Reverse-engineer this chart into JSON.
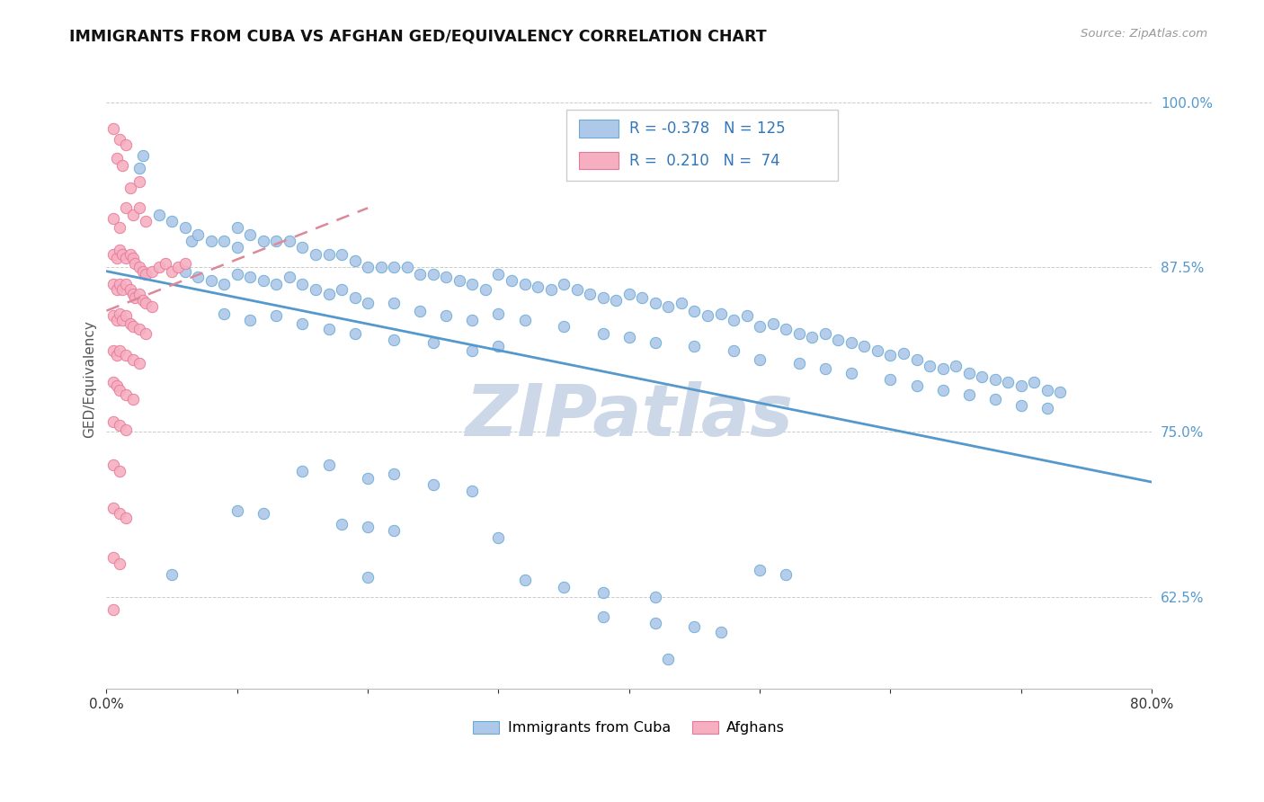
{
  "title": "IMMIGRANTS FROM CUBA VS AFGHAN GED/EQUIVALENCY CORRELATION CHART",
  "source": "Source: ZipAtlas.com",
  "ylabel": "GED/Equivalency",
  "ytick_values": [
    0.625,
    0.75,
    0.875,
    1.0
  ],
  "xlim": [
    0.0,
    0.8
  ],
  "ylim": [
    0.555,
    1.025
  ],
  "legend_blue_label": "Immigrants from Cuba",
  "legend_pink_label": "Afghans",
  "r_blue": "-0.378",
  "n_blue": "125",
  "r_pink": "0.210",
  "n_pink": "74",
  "blue_color": "#adc8e8",
  "pink_color": "#f5afc0",
  "blue_edge_color": "#6aaad4",
  "pink_edge_color": "#e87898",
  "blue_line_color": "#5599cc",
  "pink_line_color": "#dd8899",
  "watermark_color": "#ccd8e8",
  "blue_line_x": [
    0.0,
    0.8
  ],
  "blue_line_y": [
    0.872,
    0.712
  ],
  "pink_line_x": [
    0.0,
    0.2
  ],
  "pink_line_y": [
    0.842,
    0.92
  ],
  "blue_scatter": [
    [
      0.025,
      0.95
    ],
    [
      0.028,
      0.96
    ],
    [
      0.04,
      0.915
    ],
    [
      0.05,
      0.91
    ],
    [
      0.06,
      0.905
    ],
    [
      0.065,
      0.895
    ],
    [
      0.07,
      0.9
    ],
    [
      0.08,
      0.895
    ],
    [
      0.09,
      0.895
    ],
    [
      0.1,
      0.905
    ],
    [
      0.11,
      0.9
    ],
    [
      0.1,
      0.89
    ],
    [
      0.12,
      0.895
    ],
    [
      0.13,
      0.895
    ],
    [
      0.14,
      0.895
    ],
    [
      0.15,
      0.89
    ],
    [
      0.16,
      0.885
    ],
    [
      0.17,
      0.885
    ],
    [
      0.18,
      0.885
    ],
    [
      0.19,
      0.88
    ],
    [
      0.2,
      0.875
    ],
    [
      0.21,
      0.875
    ],
    [
      0.22,
      0.875
    ],
    [
      0.23,
      0.875
    ],
    [
      0.24,
      0.87
    ],
    [
      0.25,
      0.87
    ],
    [
      0.26,
      0.868
    ],
    [
      0.27,
      0.865
    ],
    [
      0.28,
      0.862
    ],
    [
      0.29,
      0.858
    ],
    [
      0.3,
      0.87
    ],
    [
      0.31,
      0.865
    ],
    [
      0.32,
      0.862
    ],
    [
      0.33,
      0.86
    ],
    [
      0.34,
      0.858
    ],
    [
      0.35,
      0.862
    ],
    [
      0.36,
      0.858
    ],
    [
      0.37,
      0.855
    ],
    [
      0.38,
      0.852
    ],
    [
      0.39,
      0.85
    ],
    [
      0.4,
      0.855
    ],
    [
      0.41,
      0.852
    ],
    [
      0.42,
      0.848
    ],
    [
      0.43,
      0.845
    ],
    [
      0.44,
      0.848
    ],
    [
      0.45,
      0.842
    ],
    [
      0.46,
      0.838
    ],
    [
      0.47,
      0.84
    ],
    [
      0.48,
      0.835
    ],
    [
      0.49,
      0.838
    ],
    [
      0.5,
      0.83
    ],
    [
      0.51,
      0.832
    ],
    [
      0.52,
      0.828
    ],
    [
      0.53,
      0.825
    ],
    [
      0.54,
      0.822
    ],
    [
      0.55,
      0.825
    ],
    [
      0.56,
      0.82
    ],
    [
      0.57,
      0.818
    ],
    [
      0.58,
      0.815
    ],
    [
      0.59,
      0.812
    ],
    [
      0.6,
      0.808
    ],
    [
      0.61,
      0.81
    ],
    [
      0.62,
      0.805
    ],
    [
      0.63,
      0.8
    ],
    [
      0.64,
      0.798
    ],
    [
      0.65,
      0.8
    ],
    [
      0.66,
      0.795
    ],
    [
      0.67,
      0.792
    ],
    [
      0.68,
      0.79
    ],
    [
      0.69,
      0.788
    ],
    [
      0.7,
      0.785
    ],
    [
      0.71,
      0.788
    ],
    [
      0.72,
      0.782
    ],
    [
      0.73,
      0.78
    ],
    [
      0.06,
      0.872
    ],
    [
      0.07,
      0.868
    ],
    [
      0.08,
      0.865
    ],
    [
      0.09,
      0.862
    ],
    [
      0.1,
      0.87
    ],
    [
      0.11,
      0.868
    ],
    [
      0.12,
      0.865
    ],
    [
      0.13,
      0.862
    ],
    [
      0.14,
      0.868
    ],
    [
      0.15,
      0.862
    ],
    [
      0.16,
      0.858
    ],
    [
      0.17,
      0.855
    ],
    [
      0.18,
      0.858
    ],
    [
      0.19,
      0.852
    ],
    [
      0.2,
      0.848
    ],
    [
      0.22,
      0.848
    ],
    [
      0.24,
      0.842
    ],
    [
      0.26,
      0.838
    ],
    [
      0.28,
      0.835
    ],
    [
      0.3,
      0.84
    ],
    [
      0.32,
      0.835
    ],
    [
      0.35,
      0.83
    ],
    [
      0.38,
      0.825
    ],
    [
      0.4,
      0.822
    ],
    [
      0.42,
      0.818
    ],
    [
      0.45,
      0.815
    ],
    [
      0.48,
      0.812
    ],
    [
      0.5,
      0.805
    ],
    [
      0.53,
      0.802
    ],
    [
      0.55,
      0.798
    ],
    [
      0.57,
      0.795
    ],
    [
      0.6,
      0.79
    ],
    [
      0.62,
      0.785
    ],
    [
      0.64,
      0.782
    ],
    [
      0.66,
      0.778
    ],
    [
      0.68,
      0.775
    ],
    [
      0.7,
      0.77
    ],
    [
      0.72,
      0.768
    ],
    [
      0.09,
      0.84
    ],
    [
      0.11,
      0.835
    ],
    [
      0.13,
      0.838
    ],
    [
      0.15,
      0.832
    ],
    [
      0.17,
      0.828
    ],
    [
      0.19,
      0.825
    ],
    [
      0.22,
      0.82
    ],
    [
      0.25,
      0.818
    ],
    [
      0.28,
      0.812
    ],
    [
      0.3,
      0.815
    ],
    [
      0.15,
      0.72
    ],
    [
      0.17,
      0.725
    ],
    [
      0.2,
      0.715
    ],
    [
      0.22,
      0.718
    ],
    [
      0.25,
      0.71
    ],
    [
      0.28,
      0.705
    ],
    [
      0.1,
      0.69
    ],
    [
      0.12,
      0.688
    ],
    [
      0.18,
      0.68
    ],
    [
      0.2,
      0.678
    ],
    [
      0.22,
      0.675
    ],
    [
      0.3,
      0.67
    ],
    [
      0.05,
      0.642
    ],
    [
      0.2,
      0.64
    ],
    [
      0.32,
      0.638
    ],
    [
      0.35,
      0.632
    ],
    [
      0.38,
      0.628
    ],
    [
      0.42,
      0.625
    ],
    [
      0.5,
      0.645
    ],
    [
      0.52,
      0.642
    ],
    [
      0.38,
      0.61
    ],
    [
      0.42,
      0.605
    ],
    [
      0.45,
      0.602
    ],
    [
      0.47,
      0.598
    ],
    [
      0.43,
      0.578
    ]
  ],
  "pink_scatter": [
    [
      0.005,
      0.98
    ],
    [
      0.01,
      0.972
    ],
    [
      0.015,
      0.968
    ],
    [
      0.008,
      0.958
    ],
    [
      0.012,
      0.952
    ],
    [
      0.018,
      0.935
    ],
    [
      0.025,
      0.94
    ],
    [
      0.005,
      0.912
    ],
    [
      0.01,
      0.905
    ],
    [
      0.015,
      0.92
    ],
    [
      0.02,
      0.915
    ],
    [
      0.025,
      0.92
    ],
    [
      0.03,
      0.91
    ],
    [
      0.005,
      0.885
    ],
    [
      0.008,
      0.882
    ],
    [
      0.01,
      0.888
    ],
    [
      0.012,
      0.885
    ],
    [
      0.015,
      0.882
    ],
    [
      0.018,
      0.885
    ],
    [
      0.02,
      0.882
    ],
    [
      0.022,
      0.878
    ],
    [
      0.025,
      0.875
    ],
    [
      0.028,
      0.872
    ],
    [
      0.03,
      0.87
    ],
    [
      0.035,
      0.872
    ],
    [
      0.04,
      0.875
    ],
    [
      0.045,
      0.878
    ],
    [
      0.05,
      0.872
    ],
    [
      0.055,
      0.875
    ],
    [
      0.06,
      0.878
    ],
    [
      0.005,
      0.862
    ],
    [
      0.008,
      0.858
    ],
    [
      0.01,
      0.862
    ],
    [
      0.012,
      0.858
    ],
    [
      0.015,
      0.862
    ],
    [
      0.018,
      0.858
    ],
    [
      0.02,
      0.855
    ],
    [
      0.022,
      0.852
    ],
    [
      0.025,
      0.855
    ],
    [
      0.028,
      0.85
    ],
    [
      0.03,
      0.848
    ],
    [
      0.035,
      0.845
    ],
    [
      0.005,
      0.838
    ],
    [
      0.008,
      0.835
    ],
    [
      0.01,
      0.84
    ],
    [
      0.012,
      0.835
    ],
    [
      0.015,
      0.838
    ],
    [
      0.018,
      0.832
    ],
    [
      0.02,
      0.83
    ],
    [
      0.025,
      0.828
    ],
    [
      0.03,
      0.825
    ],
    [
      0.005,
      0.812
    ],
    [
      0.008,
      0.808
    ],
    [
      0.01,
      0.812
    ],
    [
      0.015,
      0.808
    ],
    [
      0.02,
      0.805
    ],
    [
      0.025,
      0.802
    ],
    [
      0.005,
      0.788
    ],
    [
      0.008,
      0.785
    ],
    [
      0.01,
      0.782
    ],
    [
      0.015,
      0.778
    ],
    [
      0.02,
      0.775
    ],
    [
      0.005,
      0.758
    ],
    [
      0.01,
      0.755
    ],
    [
      0.015,
      0.752
    ],
    [
      0.005,
      0.725
    ],
    [
      0.01,
      0.72
    ],
    [
      0.005,
      0.692
    ],
    [
      0.01,
      0.688
    ],
    [
      0.015,
      0.685
    ],
    [
      0.005,
      0.655
    ],
    [
      0.01,
      0.65
    ],
    [
      0.005,
      0.615
    ]
  ]
}
